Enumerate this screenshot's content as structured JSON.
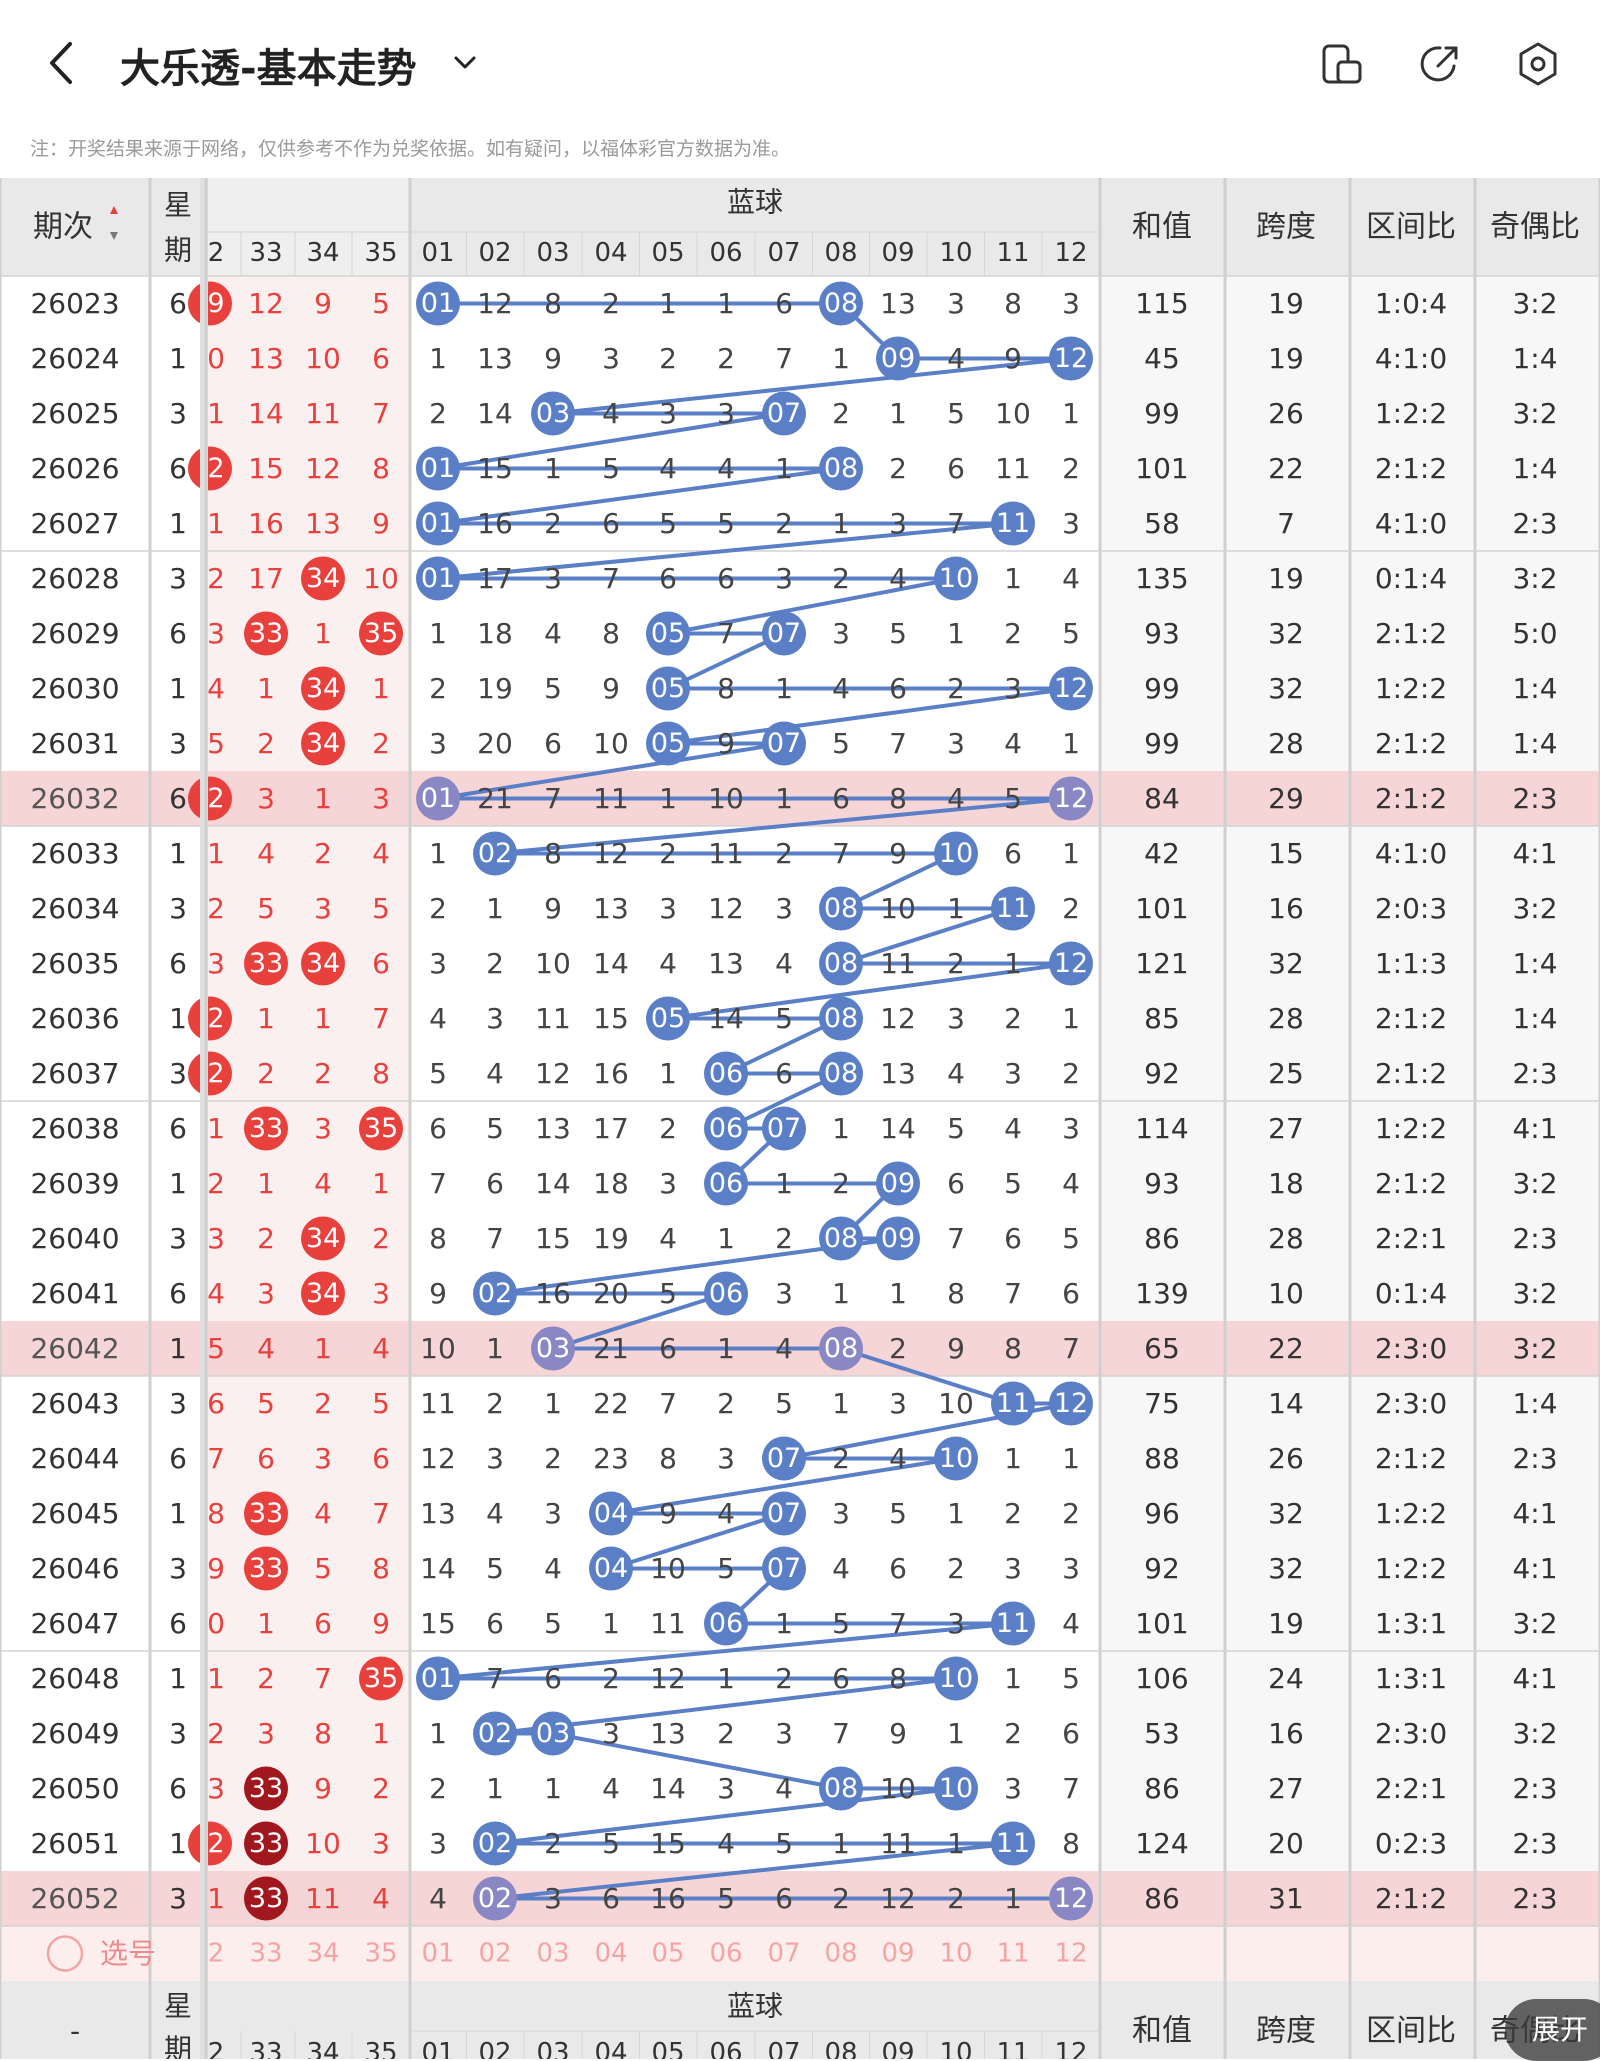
{
  "header": {
    "title": "大乐透-基本走势",
    "note": "注：开奖结果来源于网络，仅供参考不作为兑奖依据。如有疑问，以福体彩官方数据为准。"
  },
  "colors": {
    "red": "#e8413d",
    "dark_red": "#a0171d",
    "blue": "#5a7fc6",
    "highlight": "#f6d5d7",
    "pick_row": "#fdeeee"
  },
  "table": {
    "col_period": "期次",
    "col_week": "星期",
    "blue_group": "蓝球",
    "sum": "和值",
    "span": "跨度",
    "zone": "区间比",
    "odd": "奇偶比",
    "red_headers": [
      "2",
      "33",
      "34",
      "35"
    ],
    "blue_headers": [
      "01",
      "02",
      "03",
      "04",
      "05",
      "06",
      "07",
      "08",
      "09",
      "10",
      "11",
      "12"
    ],
    "pick_label": "选号",
    "pick_red": [
      "2",
      "33",
      "34",
      "35"
    ],
    "pick_blue": [
      "01",
      "02",
      "03",
      "04",
      "05",
      "06",
      "07",
      "08",
      "09",
      "10",
      "11",
      "12"
    ],
    "footer_period": "-",
    "footer_week_1": "星",
    "footer_week_2": "期",
    "footer_red": [
      "2",
      "33",
      "34",
      "35"
    ],
    "footer_blue": [
      "01",
      "02",
      "03",
      "04",
      "05",
      "06",
      "07",
      "08",
      "09",
      "10",
      "11",
      "12"
    ],
    "rows": [
      {
        "p": "26023",
        "w": "6",
        "r": [
          "9",
          "12",
          "9",
          "5"
        ],
        "b": [
          "01",
          "12",
          "8",
          "2",
          "1",
          "1",
          "6",
          "08",
          "13",
          "3",
          "8",
          "3"
        ],
        "s": "115",
        "k": "19",
        "z": "1:0:4",
        "o": "3:2"
      },
      {
        "p": "26024",
        "w": "1",
        "r": [
          "0",
          "13",
          "10",
          "6"
        ],
        "b": [
          "1",
          "13",
          "9",
          "3",
          "2",
          "2",
          "7",
          "1",
          "09",
          "4",
          "9",
          "12"
        ],
        "s": "45",
        "k": "19",
        "z": "4:1:0",
        "o": "1:4"
      },
      {
        "p": "26025",
        "w": "3",
        "r": [
          "1",
          "14",
          "11",
          "7"
        ],
        "b": [
          "2",
          "14",
          "03",
          "4",
          "3",
          "3",
          "07",
          "2",
          "1",
          "5",
          "10",
          "1"
        ],
        "s": "99",
        "k": "26",
        "z": "1:2:2",
        "o": "3:2"
      },
      {
        "p": "26026",
        "w": "6",
        "r": [
          "2",
          "15",
          "12",
          "8"
        ],
        "b": [
          "01",
          "15",
          "1",
          "5",
          "4",
          "4",
          "1",
          "08",
          "2",
          "6",
          "11",
          "2"
        ],
        "s": "101",
        "k": "22",
        "z": "2:1:2",
        "o": "1:4"
      },
      {
        "p": "26027",
        "w": "1",
        "r": [
          "1",
          "16",
          "13",
          "9"
        ],
        "b": [
          "01",
          "16",
          "2",
          "6",
          "5",
          "5",
          "2",
          "1",
          "3",
          "7",
          "11",
          "3"
        ],
        "s": "58",
        "k": "7",
        "z": "4:1:0",
        "o": "2:3"
      },
      {
        "p": "26028",
        "w": "3",
        "r": [
          "2",
          "17",
          "34",
          "10"
        ],
        "b": [
          "01",
          "17",
          "3",
          "7",
          "6",
          "6",
          "3",
          "2",
          "4",
          "10",
          "1",
          "4"
        ],
        "s": "135",
        "k": "19",
        "z": "0:1:4",
        "o": "3:2"
      },
      {
        "p": "26029",
        "w": "6",
        "r": [
          "3",
          "33",
          "1",
          "35"
        ],
        "b": [
          "1",
          "18",
          "4",
          "8",
          "05",
          "7",
          "07",
          "3",
          "5",
          "1",
          "2",
          "5"
        ],
        "s": "93",
        "k": "32",
        "z": "2:1:2",
        "o": "5:0"
      },
      {
        "p": "26030",
        "w": "1",
        "r": [
          "4",
          "1",
          "34",
          "1"
        ],
        "b": [
          "2",
          "19",
          "5",
          "9",
          "05",
          "8",
          "1",
          "4",
          "6",
          "2",
          "3",
          "12"
        ],
        "s": "99",
        "k": "32",
        "z": "1:2:2",
        "o": "1:4"
      },
      {
        "p": "26031",
        "w": "3",
        "r": [
          "5",
          "2",
          "34",
          "2"
        ],
        "b": [
          "3",
          "20",
          "6",
          "10",
          "05",
          "9",
          "07",
          "5",
          "7",
          "3",
          "4",
          "1"
        ],
        "s": "99",
        "k": "28",
        "z": "2:1:2",
        "o": "1:4"
      },
      {
        "p": "26032",
        "w": "6",
        "r": [
          "2",
          "3",
          "1",
          "3"
        ],
        "b": [
          "01",
          "21",
          "7",
          "11",
          "1",
          "10",
          "1",
          "6",
          "8",
          "4",
          "5",
          "12"
        ],
        "s": "84",
        "k": "29",
        "z": "2:1:2",
        "o": "2:3"
      },
      {
        "p": "26033",
        "w": "1",
        "r": [
          "1",
          "4",
          "2",
          "4"
        ],
        "b": [
          "1",
          "02",
          "8",
          "12",
          "2",
          "11",
          "2",
          "7",
          "9",
          "10",
          "6",
          "1"
        ],
        "s": "42",
        "k": "15",
        "z": "4:1:0",
        "o": "4:1"
      },
      {
        "p": "26034",
        "w": "3",
        "r": [
          "2",
          "5",
          "3",
          "5"
        ],
        "b": [
          "2",
          "1",
          "9",
          "13",
          "3",
          "12",
          "3",
          "08",
          "10",
          "1",
          "11",
          "2"
        ],
        "s": "101",
        "k": "16",
        "z": "2:0:3",
        "o": "3:2"
      },
      {
        "p": "26035",
        "w": "6",
        "r": [
          "3",
          "33",
          "34",
          "6"
        ],
        "b": [
          "3",
          "2",
          "10",
          "14",
          "4",
          "13",
          "4",
          "08",
          "11",
          "2",
          "1",
          "12"
        ],
        "s": "121",
        "k": "32",
        "z": "1:1:3",
        "o": "1:4"
      },
      {
        "p": "26036",
        "w": "1",
        "r": [
          "2",
          "1",
          "1",
          "7"
        ],
        "b": [
          "4",
          "3",
          "11",
          "15",
          "05",
          "14",
          "5",
          "08",
          "12",
          "3",
          "2",
          "1"
        ],
        "s": "85",
        "k": "28",
        "z": "2:1:2",
        "o": "1:4"
      },
      {
        "p": "26037",
        "w": "3",
        "r": [
          "2",
          "2",
          "2",
          "8"
        ],
        "b": [
          "5",
          "4",
          "12",
          "16",
          "1",
          "06",
          "6",
          "08",
          "13",
          "4",
          "3",
          "2"
        ],
        "s": "92",
        "k": "25",
        "z": "2:1:2",
        "o": "2:3"
      },
      {
        "p": "26038",
        "w": "6",
        "r": [
          "1",
          "33",
          "3",
          "35"
        ],
        "b": [
          "6",
          "5",
          "13",
          "17",
          "2",
          "06",
          "07",
          "1",
          "14",
          "5",
          "4",
          "3"
        ],
        "s": "114",
        "k": "27",
        "z": "1:2:2",
        "o": "4:1"
      },
      {
        "p": "26039",
        "w": "1",
        "r": [
          "2",
          "1",
          "4",
          "1"
        ],
        "b": [
          "7",
          "6",
          "14",
          "18",
          "3",
          "06",
          "1",
          "2",
          "09",
          "6",
          "5",
          "4"
        ],
        "s": "93",
        "k": "18",
        "z": "2:1:2",
        "o": "3:2"
      },
      {
        "p": "26040",
        "w": "3",
        "r": [
          "3",
          "2",
          "34",
          "2"
        ],
        "b": [
          "8",
          "7",
          "15",
          "19",
          "4",
          "1",
          "2",
          "08",
          "09",
          "7",
          "6",
          "5"
        ],
        "s": "86",
        "k": "28",
        "z": "2:2:1",
        "o": "2:3"
      },
      {
        "p": "26041",
        "w": "6",
        "r": [
          "4",
          "3",
          "34",
          "3"
        ],
        "b": [
          "9",
          "02",
          "16",
          "20",
          "5",
          "06",
          "3",
          "1",
          "1",
          "8",
          "7",
          "6"
        ],
        "s": "139",
        "k": "10",
        "z": "0:1:4",
        "o": "3:2"
      },
      {
        "p": "26042",
        "w": "1",
        "r": [
          "5",
          "4",
          "1",
          "4"
        ],
        "b": [
          "10",
          "1",
          "03",
          "21",
          "6",
          "1",
          "4",
          "08",
          "2",
          "9",
          "8",
          "7"
        ],
        "s": "65",
        "k": "22",
        "z": "2:3:0",
        "o": "3:2"
      },
      {
        "p": "26043",
        "w": "3",
        "r": [
          "6",
          "5",
          "2",
          "5"
        ],
        "b": [
          "11",
          "2",
          "1",
          "22",
          "7",
          "2",
          "5",
          "1",
          "3",
          "10",
          "11",
          "12"
        ],
        "s": "75",
        "k": "14",
        "z": "2:3:0",
        "o": "1:4"
      },
      {
        "p": "26044",
        "w": "6",
        "r": [
          "7",
          "6",
          "3",
          "6"
        ],
        "b": [
          "12",
          "3",
          "2",
          "23",
          "8",
          "3",
          "07",
          "2",
          "4",
          "10",
          "1",
          "1"
        ],
        "s": "88",
        "k": "26",
        "z": "2:1:2",
        "o": "2:3"
      },
      {
        "p": "26045",
        "w": "1",
        "r": [
          "8",
          "33",
          "4",
          "7"
        ],
        "b": [
          "13",
          "4",
          "3",
          "04",
          "9",
          "4",
          "07",
          "3",
          "5",
          "1",
          "2",
          "2"
        ],
        "s": "96",
        "k": "32",
        "z": "1:2:2",
        "o": "4:1"
      },
      {
        "p": "26046",
        "w": "3",
        "r": [
          "9",
          "33",
          "5",
          "8"
        ],
        "b": [
          "14",
          "5",
          "4",
          "04",
          "10",
          "5",
          "07",
          "4",
          "6",
          "2",
          "3",
          "3"
        ],
        "s": "92",
        "k": "32",
        "z": "1:2:2",
        "o": "4:1"
      },
      {
        "p": "26047",
        "w": "6",
        "r": [
          "0",
          "1",
          "6",
          "9"
        ],
        "b": [
          "15",
          "6",
          "5",
          "1",
          "11",
          "06",
          "1",
          "5",
          "7",
          "3",
          "11",
          "4"
        ],
        "s": "101",
        "k": "19",
        "z": "1:3:1",
        "o": "3:2"
      },
      {
        "p": "26048",
        "w": "1",
        "r": [
          "1",
          "2",
          "7",
          "35"
        ],
        "b": [
          "01",
          "7",
          "6",
          "2",
          "12",
          "1",
          "2",
          "6",
          "8",
          "10",
          "1",
          "5"
        ],
        "s": "106",
        "k": "24",
        "z": "1:3:1",
        "o": "4:1"
      },
      {
        "p": "26049",
        "w": "3",
        "r": [
          "2",
          "3",
          "8",
          "1"
        ],
        "b": [
          "1",
          "02",
          "03",
          "3",
          "13",
          "2",
          "3",
          "7",
          "9",
          "1",
          "2",
          "6"
        ],
        "s": "53",
        "k": "16",
        "z": "2:3:0",
        "o": "3:2"
      },
      {
        "p": "26050",
        "w": "6",
        "r": [
          "3",
          "33",
          "9",
          "2"
        ],
        "b": [
          "2",
          "1",
          "1",
          "4",
          "14",
          "3",
          "4",
          "08",
          "10",
          "10",
          "3",
          "7"
        ],
        "s": "86",
        "k": "27",
        "z": "2:2:1",
        "o": "2:3"
      },
      {
        "p": "26051",
        "w": "1",
        "r": [
          "2",
          "33",
          "10",
          "3"
        ],
        "b": [
          "3",
          "02",
          "2",
          "5",
          "15",
          "4",
          "5",
          "1",
          "11",
          "1",
          "11",
          "8"
        ],
        "s": "124",
        "k": "20",
        "z": "0:2:3",
        "o": "2:3"
      },
      {
        "p": "26052",
        "w": "3",
        "r": [
          "1",
          "33",
          "11",
          "4"
        ],
        "b": [
          "4",
          "02",
          "3",
          "6",
          "16",
          "5",
          "6",
          "2",
          "12",
          "2",
          "1",
          "12"
        ],
        "s": "86",
        "k": "31",
        "z": "2:1:2",
        "o": "2:3"
      }
    ]
  },
  "red_balls": [
    {
      "row": 0,
      "col": 0,
      "n": "9",
      "style": "edge"
    },
    {
      "row": 3,
      "col": 0,
      "n": "2",
      "style": "edge"
    },
    {
      "row": 5,
      "col": 2,
      "n": "34",
      "style": "red"
    },
    {
      "row": 6,
      "col": 1,
      "n": "33",
      "style": "red"
    },
    {
      "row": 6,
      "col": 3,
      "n": "35",
      "style": "red"
    },
    {
      "row": 7,
      "col": 2,
      "n": "34",
      "style": "red"
    },
    {
      "row": 8,
      "col": 2,
      "n": "34",
      "style": "red"
    },
    {
      "row": 9,
      "col": 0,
      "n": "2",
      "style": "edge"
    },
    {
      "row": 12,
      "col": 1,
      "n": "33",
      "style": "red"
    },
    {
      "row": 12,
      "col": 2,
      "n": "34",
      "style": "red"
    },
    {
      "row": 13,
      "col": 0,
      "n": "2",
      "style": "edge"
    },
    {
      "row": 14,
      "col": 0,
      "n": "2",
      "style": "edge"
    },
    {
      "row": 15,
      "col": 1,
      "n": "33",
      "style": "red"
    },
    {
      "row": 15,
      "col": 3,
      "n": "35",
      "style": "red"
    },
    {
      "row": 17,
      "col": 2,
      "n": "34",
      "style": "red"
    },
    {
      "row": 18,
      "col": 2,
      "n": "34",
      "style": "red"
    },
    {
      "row": 22,
      "col": 1,
      "n": "33",
      "style": "red"
    },
    {
      "row": 23,
      "col": 1,
      "n": "33",
      "style": "red"
    },
    {
      "row": 25,
      "col": 3,
      "n": "35",
      "style": "red"
    },
    {
      "row": 27,
      "col": 1,
      "n": "33",
      "style": "dark"
    },
    {
      "row": 28,
      "col": 0,
      "n": "2",
      "style": "edge"
    },
    {
      "row": 28,
      "col": 1,
      "n": "33",
      "style": "dark"
    },
    {
      "row": 29,
      "col": 1,
      "n": "33",
      "style": "dark"
    }
  ],
  "blue_balls": [
    [
      1,
      8
    ],
    [
      9,
      12
    ],
    [
      3,
      7
    ],
    [
      1,
      8
    ],
    [
      1,
      11
    ],
    [
      1,
      10
    ],
    [
      5,
      7
    ],
    [
      5,
      12
    ],
    [
      5,
      7
    ],
    [
      1,
      12
    ],
    [
      2,
      10
    ],
    [
      8,
      11
    ],
    [
      8,
      12
    ],
    [
      5,
      8
    ],
    [
      6,
      8
    ],
    [
      6,
      7
    ],
    [
      6,
      9
    ],
    [
      8,
      9
    ],
    [
      2,
      6
    ],
    [
      3,
      8
    ],
    [
      11,
      12
    ],
    [
      7,
      10
    ],
    [
      4,
      7
    ],
    [
      4,
      7
    ],
    [
      6,
      11
    ],
    [
      1,
      10
    ],
    [
      2,
      3
    ],
    [
      8,
      10
    ],
    [
      2,
      11
    ],
    [
      2,
      12
    ]
  ],
  "highlight_rows": [
    9,
    19,
    29
  ]
}
